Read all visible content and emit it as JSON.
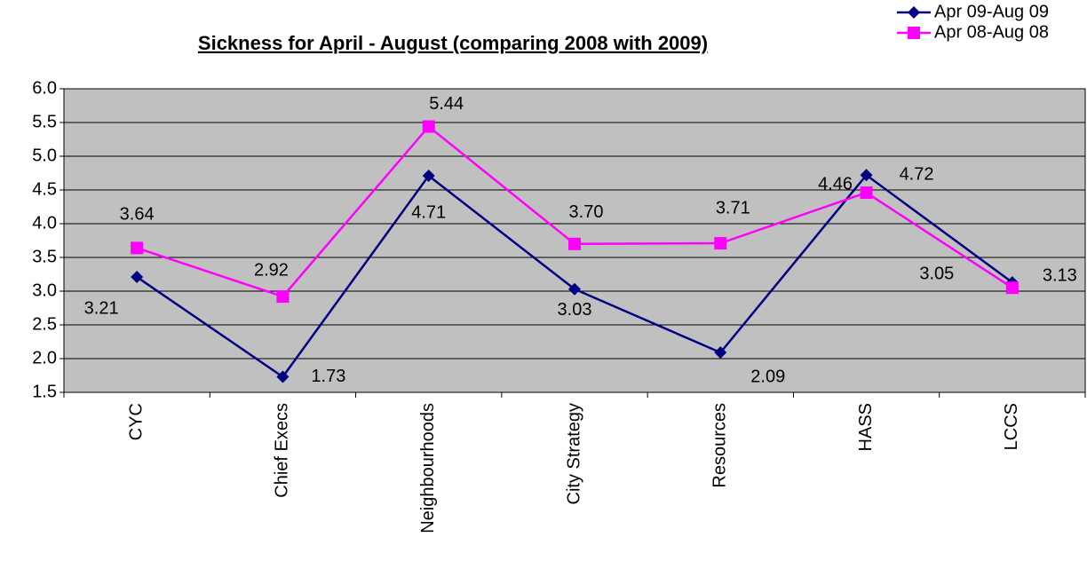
{
  "chart_data": {
    "type": "line",
    "title": "Sickness for April - August (comparing 2008 with 2009)",
    "categories": [
      "CYC",
      "Chief Execs",
      "Neighbourhoods",
      "City Strategy",
      "Resources",
      "HASS",
      "LCCS"
    ],
    "series": [
      {
        "name": "Apr 09-Aug 09",
        "color": "#000080",
        "marker": "diamond",
        "values": [
          3.21,
          1.73,
          4.71,
          3.03,
          2.09,
          4.72,
          3.13
        ],
        "value_labels": [
          "3.21",
          "1.73",
          "4.71",
          "3.03",
          "2.09",
          "4.72",
          "3.13"
        ]
      },
      {
        "name": "Apr 08-Aug 08",
        "color": "#FF00FF",
        "marker": "square",
        "values": [
          3.64,
          2.92,
          5.44,
          3.7,
          3.71,
          4.46,
          3.05
        ],
        "value_labels": [
          "3.64",
          "2.92",
          "5.44",
          "3.70",
          "3.71",
          "4.46",
          "3.05"
        ]
      }
    ],
    "ylim": [
      1.5,
      6.0
    ],
    "yticks": [
      {
        "value": 1.5,
        "label": "1.5"
      },
      {
        "value": 2,
        "label": "2.0"
      },
      {
        "value": 2.5,
        "label": "2.5"
      },
      {
        "value": 3,
        "label": "3.0"
      },
      {
        "value": 3.5,
        "label": "3.5"
      },
      {
        "value": 4,
        "label": "4.0"
      },
      {
        "value": 4.5,
        "label": "4.5"
      },
      {
        "value": 5,
        "label": "5.0"
      },
      {
        "value": 5.5,
        "label": "5.5"
      },
      {
        "value": 6,
        "label": "6.0"
      }
    ],
    "grid": true,
    "legend": "top-right",
    "background": "#C0C0C0"
  }
}
